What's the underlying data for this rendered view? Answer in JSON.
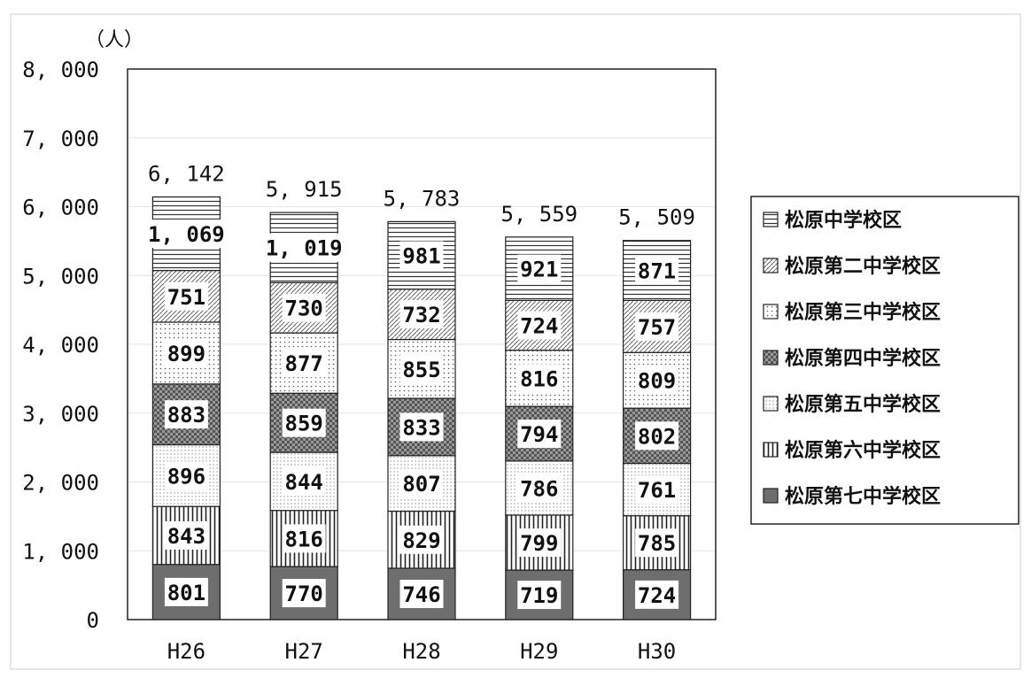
{
  "chart_data": {
    "type": "bar",
    "stacked": true,
    "unit_label": "（人）",
    "categories": [
      "H26",
      "H27",
      "H28",
      "H29",
      "H30"
    ],
    "ylim": [
      0,
      8000
    ],
    "yticks": [
      "0",
      "1, 000",
      "2, 000",
      "3, 000",
      "4, 000",
      "5, 000",
      "6, 000",
      "7, 000",
      "8, 000"
    ],
    "grid": true,
    "legend_position": "right",
    "series": [
      {
        "name": "松原第七中学校区",
        "values": [
          801,
          770,
          746,
          719,
          724
        ],
        "labels": [
          "801",
          "770",
          "746",
          "719",
          "724"
        ],
        "fill": "#6e6e6e"
      },
      {
        "name": "松原第六中学校区",
        "values": [
          843,
          816,
          829,
          799,
          785
        ],
        "labels": [
          "843",
          "816",
          "829",
          "799",
          "785"
        ],
        "fill": "#ffffff"
      },
      {
        "name": "松原第五中学校区",
        "values": [
          896,
          844,
          807,
          786,
          761
        ],
        "labels": [
          "896",
          "844",
          "807",
          "786",
          "761"
        ],
        "fill": "#ffffff"
      },
      {
        "name": "松原第四中学校区",
        "values": [
          883,
          859,
          833,
          794,
          802
        ],
        "labels": [
          "883",
          "859",
          "833",
          "794",
          "802"
        ],
        "fill": "#8a8a8a"
      },
      {
        "name": "松原第三中学校区",
        "values": [
          899,
          877,
          855,
          816,
          809
        ],
        "labels": [
          "899",
          "877",
          "855",
          "816",
          "809"
        ],
        "fill": "#ffffff"
      },
      {
        "name": "松原第二中学校区",
        "values": [
          751,
          730,
          732,
          724,
          757
        ],
        "labels": [
          "751",
          "730",
          "732",
          "724",
          "757"
        ],
        "fill": "#ffffff"
      },
      {
        "name": "松原中学校区",
        "values": [
          1069,
          1019,
          981,
          921,
          871
        ],
        "labels": [
          "1, 069",
          "1, 019",
          "981",
          "921",
          "871"
        ],
        "fill": "#ffffff"
      }
    ],
    "totals": [
      6142,
      5915,
      5783,
      5559,
      5509
    ],
    "total_labels": [
      "6, 142",
      "5, 915",
      "5, 783",
      "5, 559",
      "5, 509"
    ],
    "legend_order": [
      "松原中学校区",
      "松原第二中学校区",
      "松原第三中学校区",
      "松原第四中学校区",
      "松原第五中学校区",
      "松原第六中学校区",
      "松原第七中学校区"
    ]
  }
}
